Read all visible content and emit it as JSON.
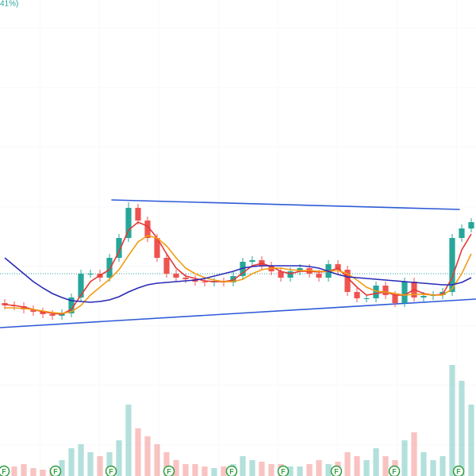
{
  "chart_data": {
    "type": "candlestick",
    "header_text": "41%)",
    "xlim": [
      -0.5,
      49.5
    ],
    "ylim": [
      0,
      600
    ],
    "volume_lim": [
      0,
      150
    ],
    "up_color": "#26a69a",
    "down_color": "#ef5350",
    "open": [
      218,
      215,
      214,
      210,
      207,
      204,
      202,
      205,
      225,
      255,
      255,
      250,
      275,
      300,
      338,
      322,
      300,
      275,
      255,
      250,
      248,
      245,
      244,
      245,
      244,
      252,
      270,
      272,
      265,
      258,
      250,
      258,
      262,
      255,
      250,
      267,
      260,
      232,
      224,
      224,
      240,
      228,
      218,
      245,
      225,
      227,
      228,
      232,
      300,
      312
    ],
    "high": [
      223,
      220,
      219,
      215,
      212,
      209,
      210,
      230,
      260,
      260,
      260,
      280,
      305,
      345,
      343,
      327,
      305,
      280,
      260,
      255,
      253,
      250,
      250,
      250,
      257,
      275,
      277,
      277,
      270,
      263,
      263,
      267,
      267,
      260,
      272,
      272,
      265,
      237,
      229,
      245,
      245,
      233,
      250,
      250,
      232,
      233,
      237,
      305,
      317,
      325
    ],
    "low": [
      210,
      209,
      205,
      202,
      199,
      197,
      197,
      200,
      220,
      250,
      245,
      245,
      270,
      295,
      317,
      295,
      270,
      250,
      245,
      243,
      240,
      239,
      239,
      239,
      239,
      247,
      265,
      260,
      253,
      245,
      245,
      253,
      250,
      245,
      245,
      255,
      227,
      219,
      219,
      219,
      223,
      213,
      213,
      220,
      220,
      222,
      223,
      227,
      295,
      307
    ],
    "close": [
      215,
      214,
      210,
      207,
      204,
      202,
      205,
      225,
      255,
      255,
      250,
      275,
      300,
      338,
      322,
      300,
      275,
      255,
      250,
      248,
      245,
      244,
      245,
      244,
      252,
      270,
      272,
      265,
      258,
      250,
      258,
      262,
      255,
      250,
      267,
      260,
      232,
      224,
      224,
      240,
      228,
      218,
      245,
      225,
      227,
      228,
      232,
      300,
      312,
      320
    ],
    "volume": [
      10,
      12,
      15,
      10,
      8,
      10,
      20,
      35,
      40,
      30,
      25,
      30,
      45,
      90,
      60,
      50,
      40,
      30,
      20,
      15,
      15,
      12,
      10,
      12,
      15,
      25,
      20,
      18,
      15,
      15,
      12,
      12,
      15,
      20,
      15,
      18,
      30,
      25,
      20,
      35,
      25,
      20,
      45,
      55,
      30,
      20,
      25,
      140,
      120,
      90
    ],
    "moving_averages": [
      {
        "color": "#e53935",
        "values": [
          216,
          215,
          213,
          210,
          207,
          205,
          204,
          210,
          228,
          245,
          253,
          260,
          283,
          310,
          320,
          315,
          300,
          280,
          262,
          252,
          249,
          246,
          245,
          245,
          247,
          256,
          265,
          268,
          264,
          258,
          255,
          258,
          258,
          257,
          258,
          262,
          250,
          238,
          228,
          230,
          232,
          228,
          228,
          235,
          230,
          228,
          229,
          250,
          285,
          305
        ]
      },
      {
        "color": "#f39c12",
        "values": [
          212,
          212,
          211,
          210,
          208,
          206,
          205,
          207,
          215,
          228,
          238,
          248,
          260,
          278,
          295,
          303,
          300,
          290,
          275,
          262,
          255,
          250,
          247,
          245,
          245,
          248,
          255,
          260,
          262,
          262,
          260,
          259,
          259,
          258,
          258,
          259,
          255,
          247,
          238,
          233,
          232,
          230,
          228,
          229,
          229,
          228,
          228,
          236,
          255,
          280
        ]
      },
      {
        "color": "#2a2ab8",
        "values": [
          275,
          265,
          255,
          245,
          237,
          230,
          225,
          221,
          220,
          219,
          220,
          222,
          226,
          232,
          237,
          241,
          243,
          244,
          245,
          246,
          247,
          249,
          252,
          255,
          258,
          262,
          264,
          265,
          265,
          265,
          265,
          265,
          264,
          262,
          258,
          254,
          251,
          250,
          249,
          248,
          247,
          246,
          245,
          244,
          243,
          242,
          241,
          241,
          244,
          250
        ]
      }
    ],
    "trendlines": [
      {
        "color": "#2f5bd8",
        "x": [
          11.2,
          47.8
        ],
        "y": [
          348,
          336
        ]
      },
      {
        "color": "#2f5bd8",
        "x": [
          -0.5,
          49.5
        ],
        "y": [
          187,
          223
        ]
      }
    ],
    "price_line": {
      "value": 255,
      "color": "#26a69a"
    },
    "events": [
      {
        "x": -0.08,
        "label": "F"
      },
      {
        "x": 5.33,
        "label": "F"
      },
      {
        "x": 11.17,
        "label": "F"
      },
      {
        "x": 17.25,
        "label": "F"
      },
      {
        "x": 23.83,
        "label": "F"
      },
      {
        "x": 29.25,
        "label": "F"
      },
      {
        "x": 34.83,
        "label": "F"
      },
      {
        "x": 40.92,
        "label": "F"
      },
      {
        "x": 47.67,
        "label": "F"
      }
    ]
  }
}
